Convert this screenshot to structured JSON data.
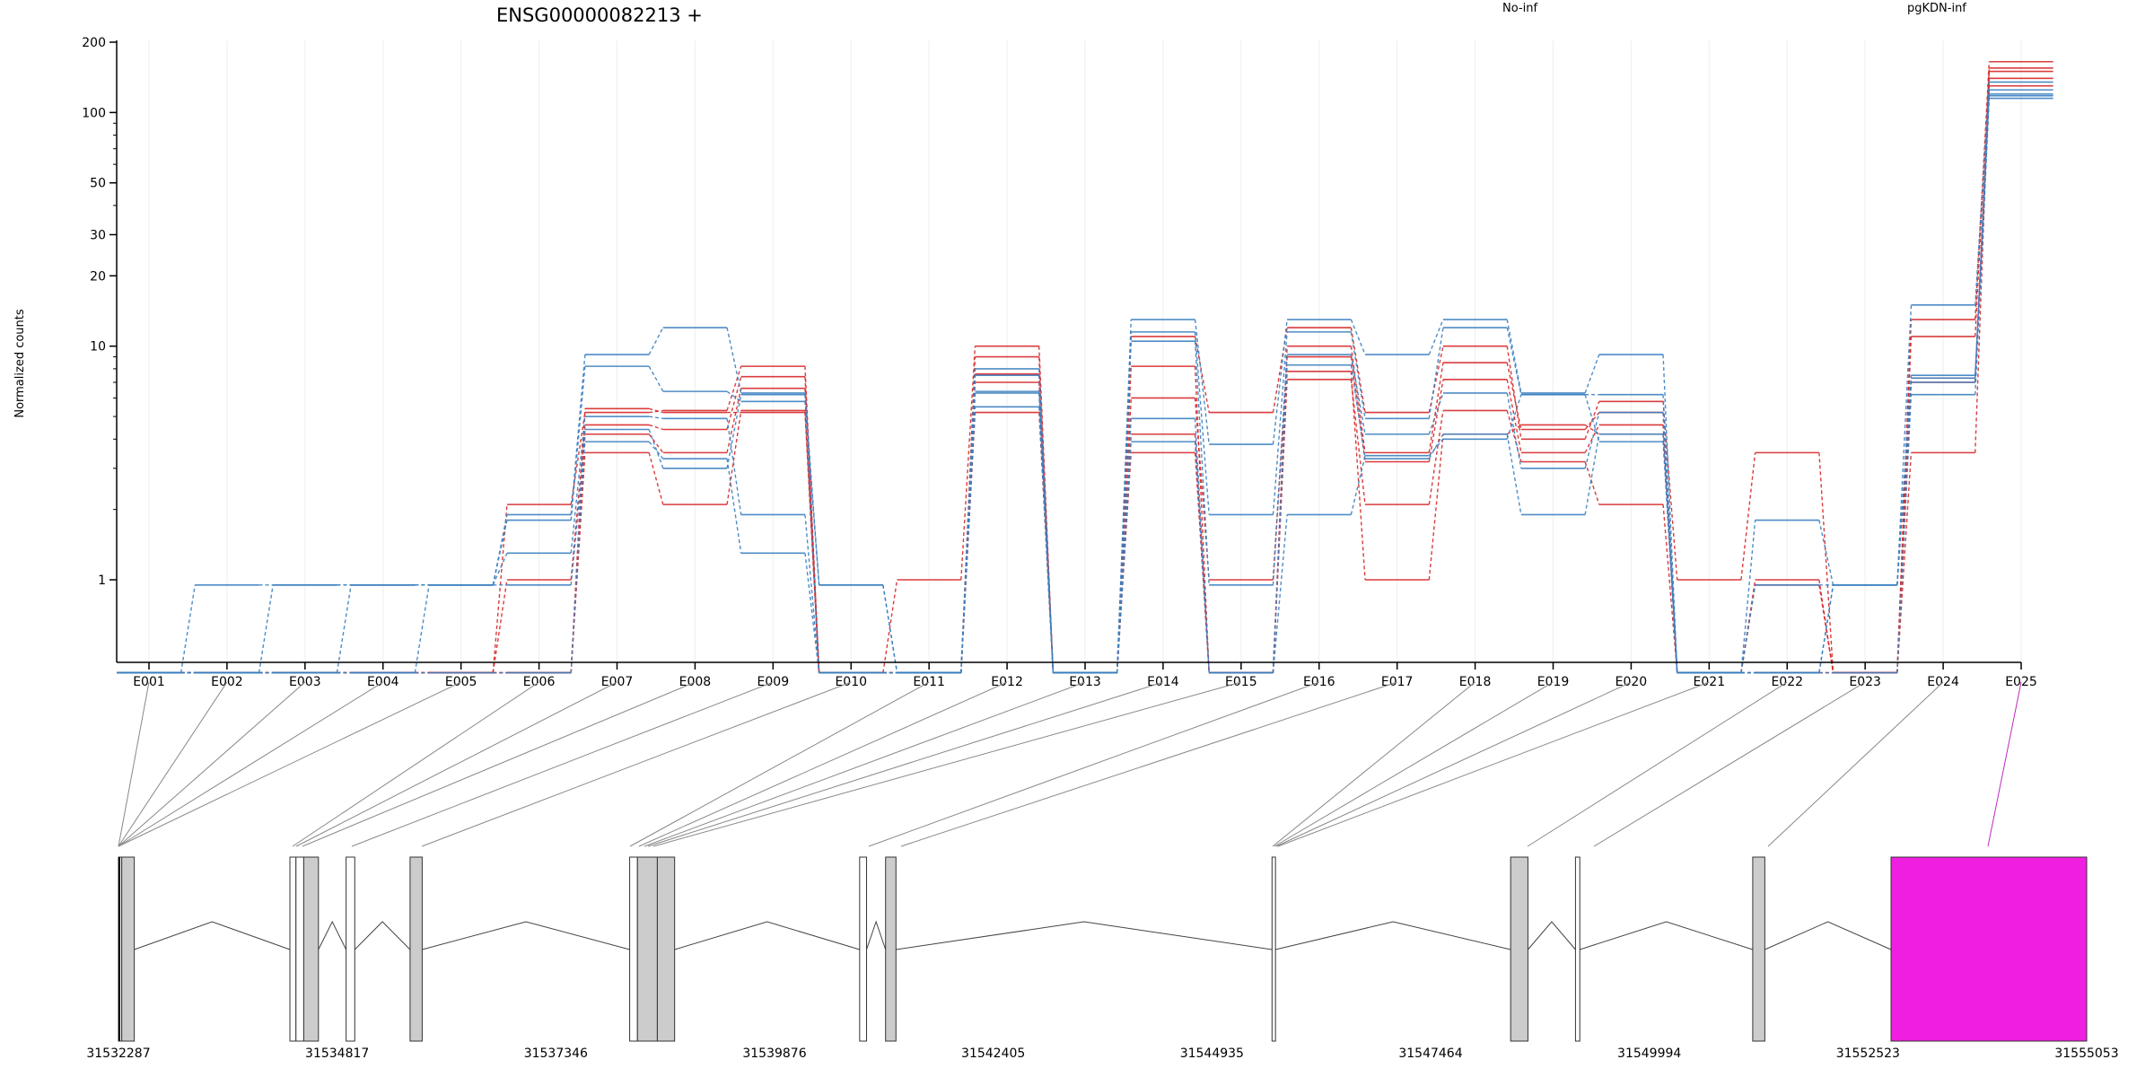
{
  "chart_data": {
    "type": "line",
    "title": "ENSG00000082213 +",
    "ylabel": "Normalized counts",
    "xlabel": "",
    "yscale": "log",
    "ylim": [
      0.4,
      200
    ],
    "yticks": [
      1,
      10,
      20,
      30,
      50,
      100,
      200
    ],
    "categories": [
      "E001",
      "E002",
      "E003",
      "E004",
      "E005",
      "E006",
      "E007",
      "E008",
      "E009",
      "E010",
      "E011",
      "E012",
      "E013",
      "E014",
      "E015",
      "E016",
      "E017",
      "E018",
      "E019",
      "E020",
      "E021",
      "E022",
      "E023",
      "E024",
      "E025"
    ],
    "legend": [
      {
        "name": "No-inf",
        "color": "#d62728"
      },
      {
        "name": "pgKDN-inf",
        "color": "#3a7fc0"
      }
    ],
    "series": [
      {
        "group": "No-inf",
        "values": [
          0.4,
          0.4,
          0.4,
          0.4,
          0.4,
          2.1,
          5.2,
          5.3,
          8.2,
          0.4,
          1,
          10,
          0.4,
          11,
          5.2,
          12,
          5.2,
          10,
          4,
          5.8,
          1,
          3.5,
          0.4,
          13,
          165
        ]
      },
      {
        "group": "No-inf",
        "values": [
          0.4,
          0.4,
          0.4,
          0.4,
          0.4,
          1,
          4.6,
          4.4,
          7.4,
          0.4,
          0.4,
          9,
          0.4,
          8.2,
          0.4,
          10,
          3.5,
          8.5,
          4.4,
          5.2,
          0.4,
          1,
          0.4,
          11,
          155
        ]
      },
      {
        "group": "No-inf",
        "values": [
          0.4,
          0.4,
          0.4,
          0.4,
          0.4,
          0.4,
          4.2,
          3.5,
          6.6,
          0.4,
          0.4,
          7.6,
          0.4,
          6,
          1,
          9,
          3.2,
          7.2,
          3.5,
          4.6,
          0.4,
          0.95,
          0.4,
          3.5,
          150
        ]
      },
      {
        "group": "No-inf",
        "values": [
          0.4,
          0.4,
          0.4,
          0.4,
          0.4,
          0.4,
          3.5,
          2.1,
          5.3,
          0.4,
          0.4,
          7,
          0.4,
          3.5,
          0.4,
          7.2,
          2.1,
          5.3,
          3.2,
          2.1,
          0.4,
          0.4,
          0.4,
          7,
          140
        ]
      },
      {
        "group": "No-inf",
        "values": [
          0.4,
          0.4,
          0.4,
          0.4,
          0.4,
          0.4,
          5.4,
          5.2,
          5.2,
          0.4,
          0.4,
          5.2,
          0.4,
          4.2,
          0.4,
          7.8,
          1,
          4.2,
          4.6,
          4.2,
          0.4,
          0.4,
          0.4,
          7.3,
          130
        ]
      },
      {
        "group": "pgKDN-inf",
        "values": [
          0.4,
          0.95,
          0.95,
          0.95,
          0.95,
          1.9,
          9.2,
          12,
          6.3,
          0.95,
          0.4,
          8,
          0.4,
          13,
          3.8,
          13,
          9.2,
          13,
          6.3,
          9.2,
          0.4,
          1.8,
          0.95,
          15,
          135
        ]
      },
      {
        "group": "pgKDN-inf",
        "values": [
          0.4,
          0.4,
          0.95,
          0.95,
          0.95,
          1.8,
          8.2,
          6.4,
          5.8,
          0.95,
          0.4,
          6.4,
          0.4,
          11.5,
          1.9,
          11.5,
          4.9,
          12,
          6.2,
          6.2,
          0.4,
          0.95,
          0.95,
          7.5,
          125
        ]
      },
      {
        "group": "pgKDN-inf",
        "values": [
          0.4,
          0.4,
          0.4,
          0.95,
          0.95,
          1.3,
          5,
          4.9,
          1.9,
          0.4,
          0.4,
          6.3,
          0.4,
          10.5,
          0.95,
          9.2,
          4.2,
          6.3,
          3,
          5.2,
          0.4,
          0.4,
          0.95,
          7.3,
          120
        ]
      },
      {
        "group": "pgKDN-inf",
        "values": [
          0.4,
          0.4,
          0.4,
          0.4,
          0.95,
          0.95,
          3.9,
          3.3,
          1.3,
          0.4,
          0.4,
          5.5,
          0.4,
          4.9,
          0.4,
          8.3,
          3.3,
          4.2,
          1.9,
          4.2,
          0.4,
          0.4,
          0.95,
          7,
          118
        ]
      },
      {
        "group": "pgKDN-inf",
        "values": [
          0.4,
          0.4,
          0.4,
          0.4,
          0.4,
          0.4,
          4.4,
          3,
          6.2,
          0.4,
          0.4,
          7.5,
          0.4,
          3.9,
          0.4,
          1.9,
          3.4,
          4,
          6.2,
          3.9,
          0.4,
          0.4,
          0.4,
          6.2,
          115
        ]
      }
    ]
  },
  "gene_model": {
    "coordinate_labels": [
      "31532287",
      "31534817",
      "31537346",
      "31539876",
      "31542405",
      "31544935",
      "31547464",
      "31549994",
      "31552523",
      "31555053"
    ],
    "highlight_color": "#f01ee0",
    "exon_fill": "#cccccc",
    "exons": [
      {
        "start": 31532287,
        "end": 31532325
      },
      {
        "start": 31532325,
        "end": 31532470
      },
      {
        "start": 31534270,
        "end": 31534340
      },
      {
        "start": 31534340,
        "end": 31534430
      },
      {
        "start": 31534430,
        "end": 31534600
      },
      {
        "start": 31534920,
        "end": 31535020
      },
      {
        "start": 31535660,
        "end": 31535800
      },
      {
        "start": 31538200,
        "end": 31538290
      },
      {
        "start": 31538290,
        "end": 31538520
      },
      {
        "start": 31538520,
        "end": 31538720
      },
      {
        "start": 31540860,
        "end": 31540940
      },
      {
        "start": 31541160,
        "end": 31541280
      },
      {
        "start": 31545630,
        "end": 31545670
      },
      {
        "start": 31548390,
        "end": 31548590
      },
      {
        "start": 31549140,
        "end": 31549190
      },
      {
        "start": 31551190,
        "end": 31551330
      },
      {
        "start": 31552790,
        "end": 31555053,
        "highlight": true
      }
    ]
  }
}
